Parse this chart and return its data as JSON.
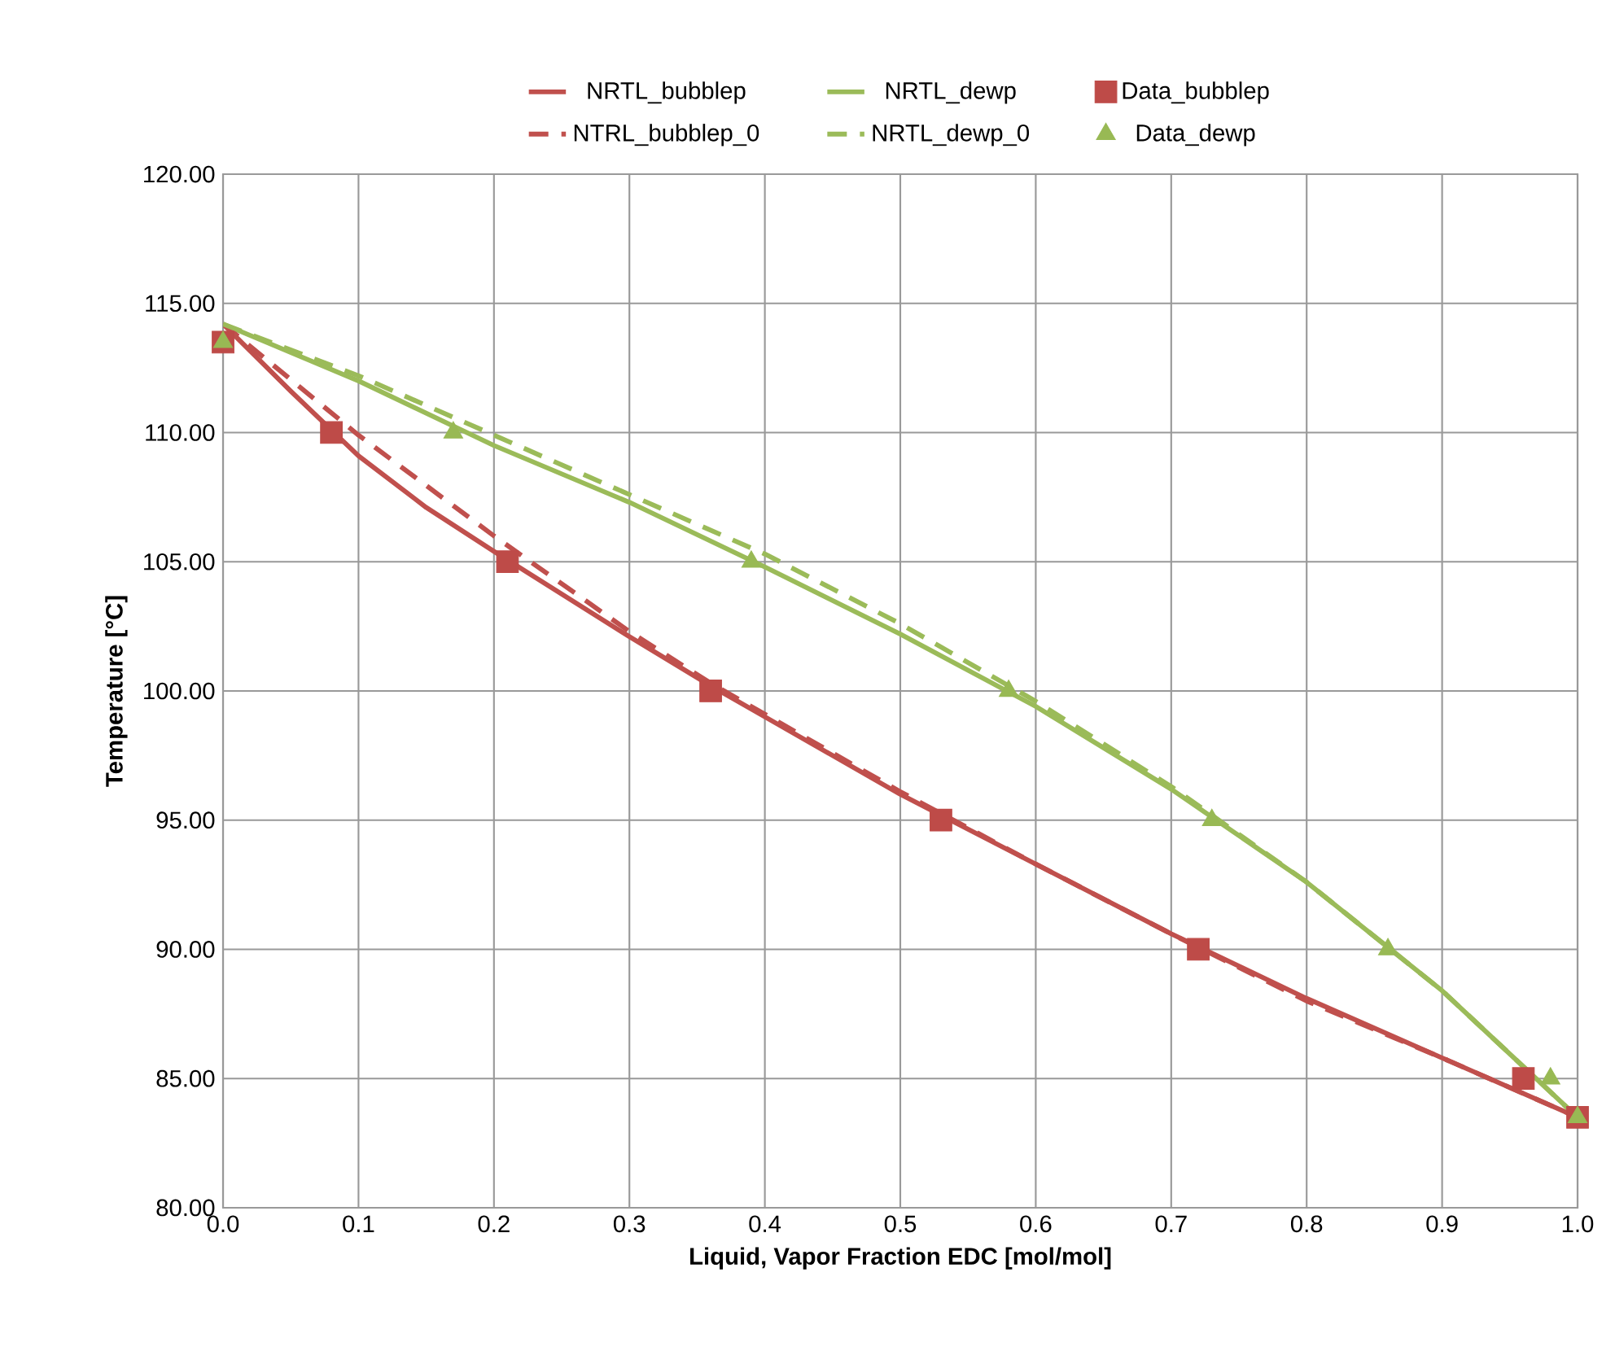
{
  "chart_data": {
    "type": "line",
    "xlabel": "Liquid, Vapor Fraction EDC [mol/mol]",
    "ylabel": "Temperature [°C]",
    "xlim": [
      0,
      1
    ],
    "ylim": [
      80,
      120
    ],
    "xticks": [
      {
        "value": 0,
        "label": "0.0"
      },
      {
        "value": 0.1,
        "label": "0.1"
      },
      {
        "value": 0.2,
        "label": "0.2"
      },
      {
        "value": 0.3,
        "label": "0.3"
      },
      {
        "value": 0.4,
        "label": "0.4"
      },
      {
        "value": 0.5,
        "label": "0.5"
      },
      {
        "value": 0.6,
        "label": "0.6"
      },
      {
        "value": 0.7,
        "label": "0.7"
      },
      {
        "value": 0.8,
        "label": "0.8"
      },
      {
        "value": 0.9,
        "label": "0.9"
      },
      {
        "value": 1,
        "label": "1.0"
      }
    ],
    "yticks": [
      {
        "value": 80,
        "label": "80.00"
      },
      {
        "value": 85,
        "label": "85.00"
      },
      {
        "value": 90,
        "label": "90.00"
      },
      {
        "value": 95,
        "label": "95.00"
      },
      {
        "value": 100,
        "label": "100.00"
      },
      {
        "value": 105,
        "label": "105.00"
      },
      {
        "value": 110,
        "label": "110.00"
      },
      {
        "value": 115,
        "label": "115.00"
      },
      {
        "value": 120,
        "label": "120.00"
      }
    ],
    "grid": true,
    "legend": "top",
    "series": [
      {
        "name": "NRTL_bubblep",
        "color": "#c0504d",
        "marker": "none",
        "line_style": "solid",
        "x": [
          0,
          0.05,
          0.1,
          0.15,
          0.2,
          0.3,
          0.36,
          0.4,
          0.5,
          0.6,
          0.7,
          0.8,
          0.9,
          1
        ],
        "values": [
          114.2,
          111.6,
          109.1,
          107.1,
          105.4,
          102.1,
          100.2,
          99.0,
          96.0,
          93.3,
          90.6,
          88.1,
          85.8,
          83.5
        ]
      },
      {
        "name": "NRTL_dewp",
        "color": "#9bbb59",
        "marker": "none",
        "line_style": "solid",
        "x": [
          0,
          0.1,
          0.2,
          0.3,
          0.4,
          0.5,
          0.6,
          0.7,
          0.8,
          0.9,
          1
        ],
        "values": [
          114.2,
          112.0,
          109.5,
          107.3,
          104.8,
          102.2,
          99.4,
          96.2,
          92.6,
          88.4,
          83.5
        ]
      },
      {
        "name": "Data_bubblep",
        "type": "scatter",
        "color": "#be4b48",
        "marker": "square",
        "line_style": "none",
        "x": [
          0,
          0.08,
          0.21,
          0.36,
          0.53,
          0.72,
          0.96,
          1
        ],
        "values": [
          113.5,
          110,
          105,
          100,
          95,
          90,
          85,
          83.5
        ]
      },
      {
        "name": "NTRL_bubblep_0",
        "color": "#c0504d",
        "marker": "none",
        "line_style": "dashed",
        "x": [
          0,
          0.1,
          0.2,
          0.3,
          0.36,
          0.4,
          0.5,
          0.6,
          0.7,
          0.8,
          0.9,
          1
        ],
        "values": [
          114.2,
          109.9,
          106.0,
          102.3,
          100.3,
          99.1,
          96.1,
          93.3,
          90.6,
          88.0,
          85.8,
          83.5
        ]
      },
      {
        "name": "NRTL_dewp_0",
        "color": "#9bbb59",
        "marker": "none",
        "line_style": "dashed",
        "x": [
          0,
          0.1,
          0.2,
          0.3,
          0.4,
          0.5,
          0.6,
          0.7,
          0.8,
          0.9,
          1
        ],
        "values": [
          114.2,
          112.2,
          109.9,
          107.6,
          105.3,
          102.6,
          99.6,
          96.3,
          92.6,
          88.4,
          83.5
        ]
      },
      {
        "name": "Data_dewp",
        "type": "scatter",
        "color": "#98b954",
        "marker": "triangle",
        "line_style": "none",
        "x": [
          0,
          0.17,
          0.39,
          0.58,
          0.73,
          0.86,
          0.98,
          1
        ],
        "values": [
          113.5,
          110,
          105,
          100,
          95,
          90,
          85,
          83.5
        ]
      }
    ]
  }
}
